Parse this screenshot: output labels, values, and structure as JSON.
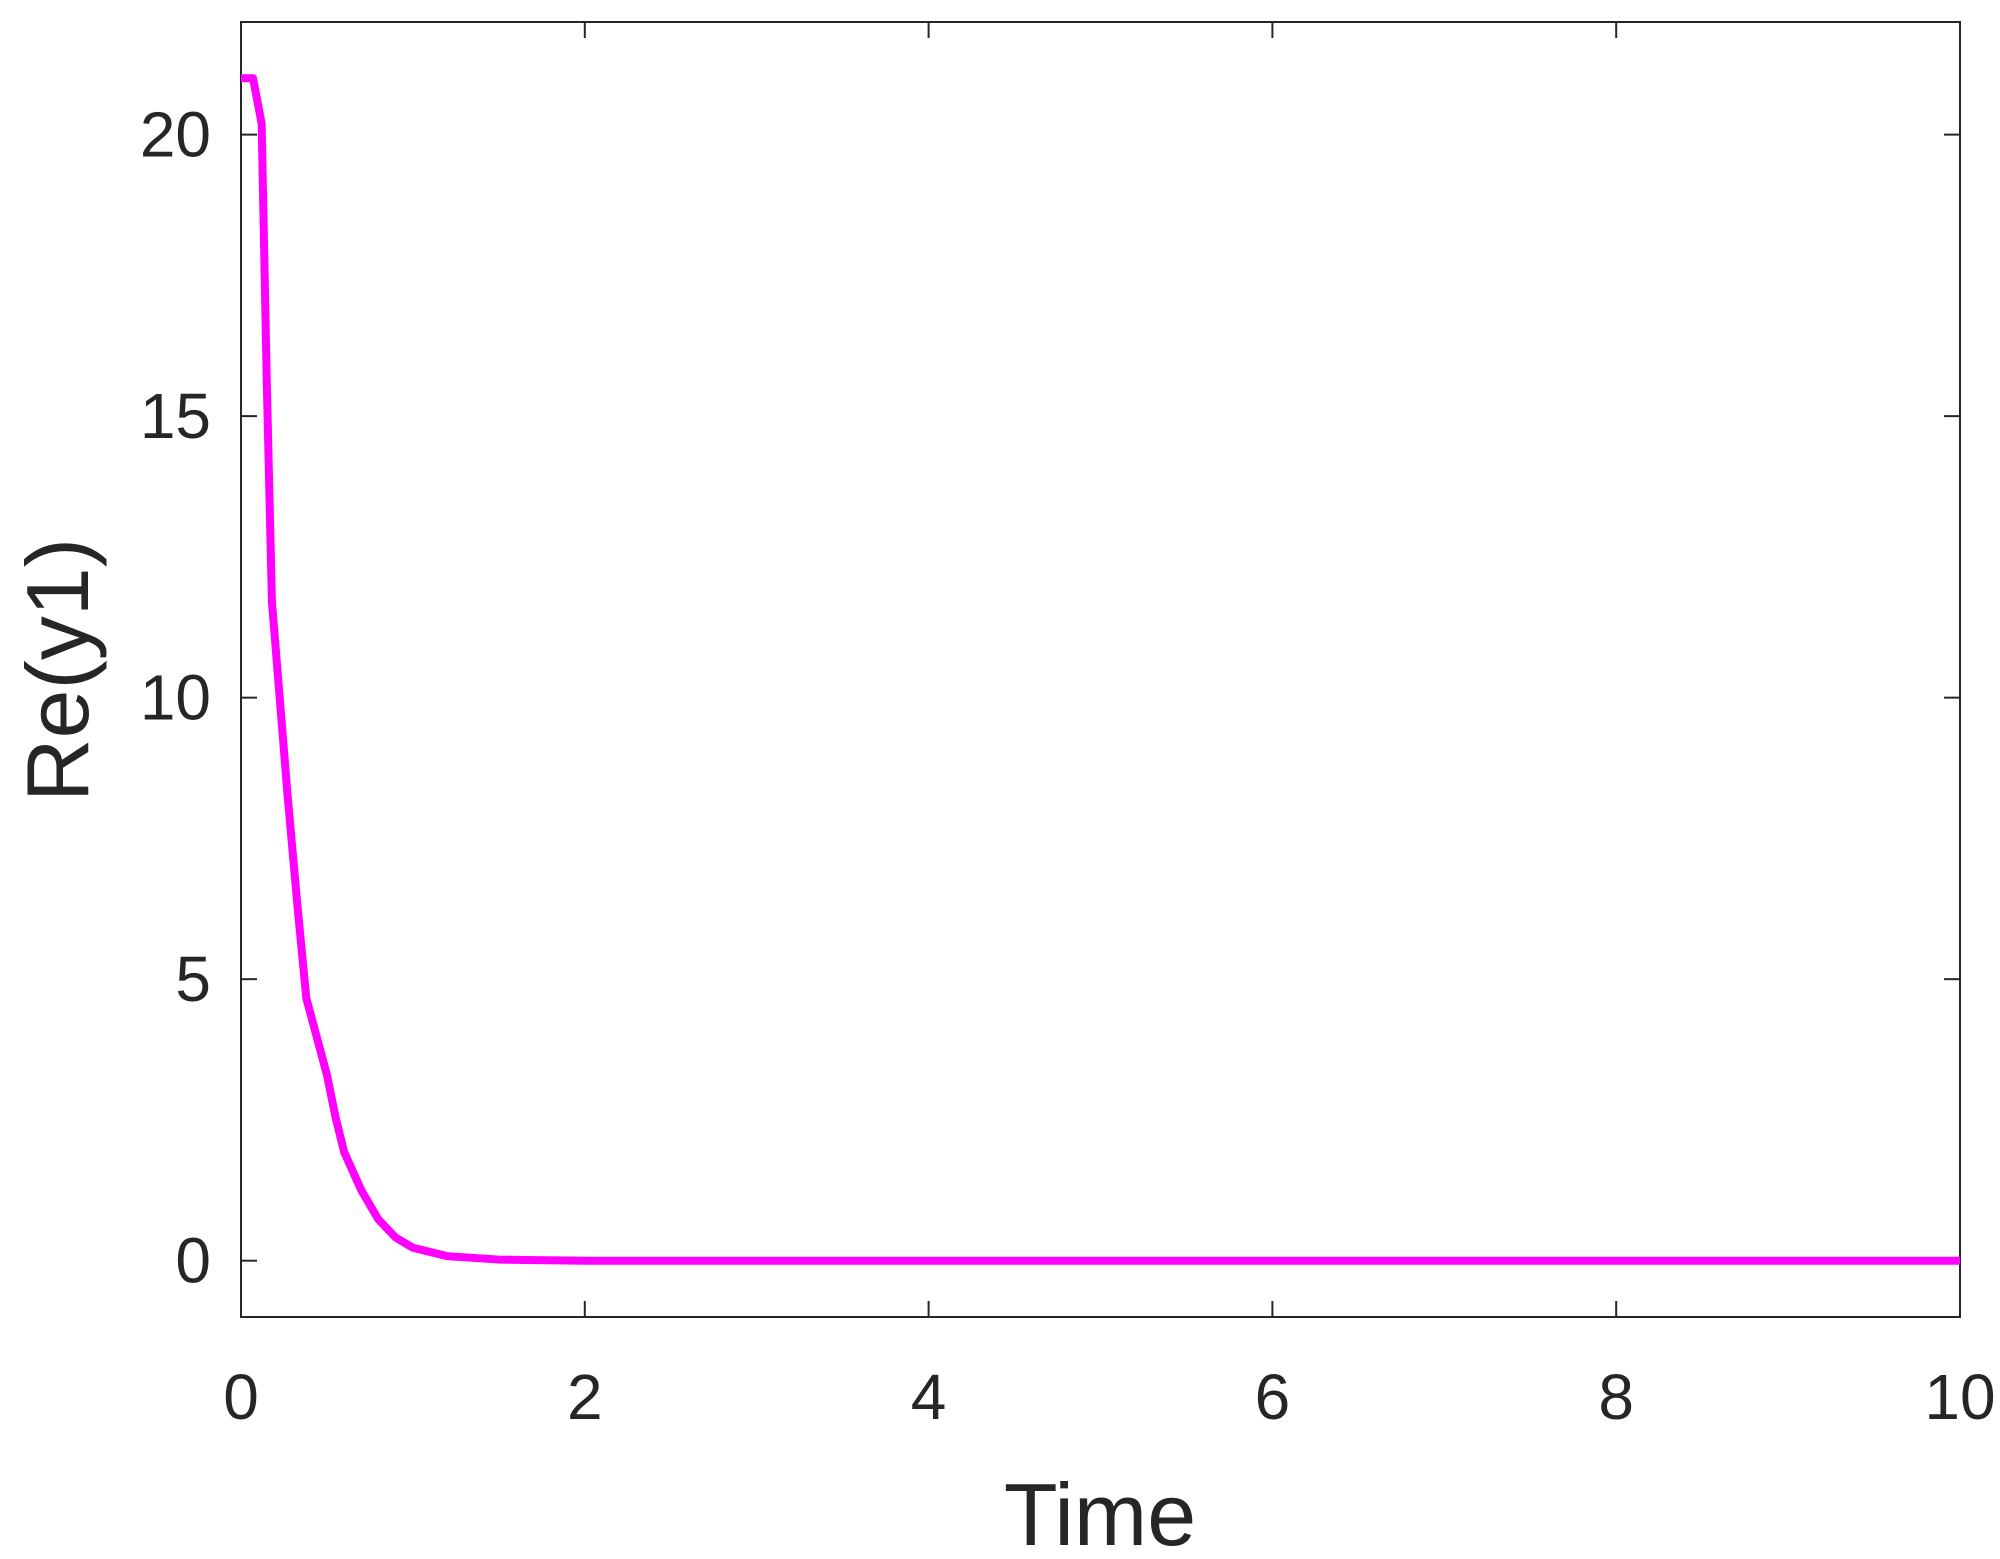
{
  "chart_data": {
    "type": "line",
    "xlabel": "Time",
    "ylabel": "Re(y1)",
    "x": [
      0,
      0.07,
      0.12,
      0.15,
      0.18,
      0.27,
      0.33,
      0.38,
      0.5,
      0.55,
      0.6,
      0.7,
      0.8,
      0.9,
      1.0,
      1.2,
      1.5,
      2,
      10
    ],
    "series": [
      {
        "name": "Re(y1)",
        "color": "#ff00ff",
        "values": [
          21,
          21,
          20.2,
          15.6,
          11.7,
          8.3,
          6.25,
          4.66,
          3.3,
          2.55,
          1.93,
          1.25,
          0.73,
          0.41,
          0.23,
          0.08,
          0.02,
          0,
          0
        ]
      }
    ],
    "xlim": [
      0,
      10
    ],
    "xticks": [
      0,
      2,
      4,
      6,
      8,
      10
    ],
    "ylim": [
      -1,
      22
    ],
    "yticks": [
      0,
      5,
      10,
      15,
      20
    ],
    "grid": false
  }
}
